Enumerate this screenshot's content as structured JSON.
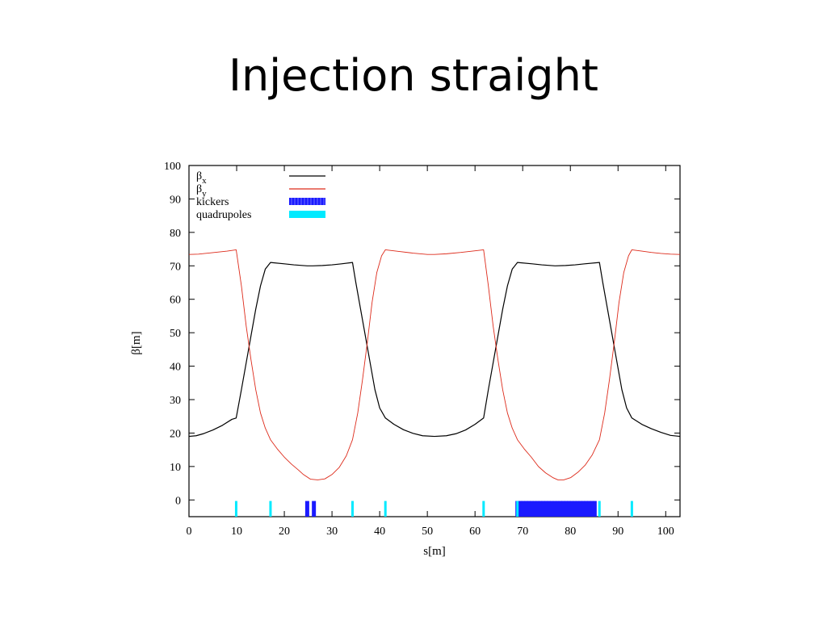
{
  "slide": {
    "title": "Injection straight"
  },
  "chart_data": {
    "type": "line",
    "title": "",
    "xlabel": "s[m]",
    "ylabel": "β[m]",
    "xlim": [
      0,
      103
    ],
    "ylim": [
      -5,
      100
    ],
    "x_ticks": [
      0,
      10,
      20,
      30,
      40,
      50,
      60,
      70,
      80,
      90,
      100
    ],
    "y_ticks": [
      0,
      10,
      20,
      30,
      40,
      50,
      60,
      70,
      80,
      90,
      100
    ],
    "grid": false,
    "legend_position": "top-left",
    "series": [
      {
        "name": "βx",
        "legend_main": "β",
        "legend_sub": "x",
        "color": "#000000",
        "x": [
          0,
          1.5,
          3,
          5,
          7,
          9,
          9.9,
          11,
          12,
          13,
          14,
          15,
          16,
          17.1,
          20,
          22,
          24.8,
          26,
          28,
          30,
          32,
          34.3,
          35,
          36,
          37,
          38,
          39,
          40,
          41.2,
          43,
          45,
          47,
          49,
          51.5,
          54,
          56,
          58,
          60,
          61.8,
          62.8,
          63.8,
          64.8,
          65.8,
          66.8,
          67.8,
          68.9,
          72,
          74,
          76.8,
          79,
          81,
          83,
          86.1,
          86.8,
          87.8,
          88.8,
          89.8,
          90.8,
          91.8,
          92.9,
          95,
          97,
          99,
          101,
          103
        ],
        "y": [
          19,
          19.2,
          19.8,
          20.9,
          22.3,
          24.1,
          24.5,
          33,
          41,
          49,
          57,
          64,
          69,
          71,
          70.6,
          70.3,
          70,
          70,
          70.1,
          70.3,
          70.6,
          71,
          65,
          57,
          49,
          41,
          33,
          27.5,
          24.5,
          22.6,
          21,
          19.9,
          19.2,
          19,
          19.2,
          19.8,
          20.9,
          22.6,
          24.5,
          33,
          41,
          49,
          57,
          64,
          69,
          71,
          70.6,
          70.3,
          70,
          70.1,
          70.3,
          70.6,
          71,
          65,
          57,
          49,
          41,
          33,
          27.5,
          24.5,
          22.6,
          21.3,
          20.2,
          19.3,
          19
        ]
      },
      {
        "name": "βy",
        "legend_main": "β",
        "legend_sub": "y",
        "color": "#dd2a1a",
        "x": [
          0,
          2,
          4,
          6,
          8,
          9.9,
          11,
          12,
          13,
          14,
          15,
          16,
          17.1,
          18.5,
          20,
          21.5,
          23,
          24,
          25.5,
          27,
          28.5,
          30,
          31.5,
          33,
          34.3,
          35.4,
          36.4,
          37.4,
          38.4,
          39.4,
          40.4,
          41.2,
          44,
          47,
          50,
          51.5,
          54,
          57,
          60,
          61.8,
          62.8,
          63.8,
          64.8,
          65.8,
          66.8,
          67.8,
          68.9,
          70.3,
          71.8,
          73.3,
          74.8,
          76.3,
          77.4,
          78.6,
          80.1,
          81.6,
          83.1,
          84.6,
          86.1,
          87.2,
          88.2,
          89.2,
          90.2,
          91.2,
          92.2,
          92.9,
          95,
          97,
          99,
          101,
          103
        ],
        "y": [
          73.4,
          73.5,
          73.8,
          74.1,
          74.4,
          74.8,
          64,
          52,
          42,
          33,
          26,
          21.5,
          18,
          15.3,
          12.8,
          10.7,
          8.9,
          7.6,
          6.2,
          6,
          6.3,
          7.6,
          9.7,
          13.2,
          18,
          26,
          36,
          47,
          59,
          68,
          73,
          74.8,
          74.3,
          73.8,
          73.4,
          73.4,
          73.6,
          74,
          74.5,
          74.8,
          64,
          52,
          42,
          33,
          26,
          21.5,
          18,
          15.3,
          12.8,
          10,
          8.1,
          6.7,
          6,
          6,
          6.7,
          8.3,
          10.4,
          13.5,
          18,
          26,
          36,
          47,
          59,
          68,
          73,
          74.8,
          74.4,
          74,
          73.7,
          73.5,
          73.4
        ]
      }
    ],
    "elements": [
      {
        "name": "kickers",
        "color": "#1a1aff",
        "style": "dashed",
        "positions": [
          24.8,
          26.2,
          68.9,
          69.5,
          70.1,
          70.7,
          71.3,
          71.9,
          72.5,
          73.1,
          73.7,
          74.3,
          74.9,
          75.5,
          76.1,
          76.7,
          77.3,
          77.9,
          78.5,
          79.1,
          79.7,
          80.3,
          80.9,
          81.5,
          82.1,
          82.7,
          83.3,
          83.9,
          84.5,
          85.1
        ]
      },
      {
        "name": "quadrupoles",
        "color": "#00eaff",
        "style": "solid",
        "positions": [
          9.9,
          17.1,
          34.3,
          41.2,
          61.8,
          68.9,
          86.1,
          92.9
        ]
      }
    ]
  }
}
